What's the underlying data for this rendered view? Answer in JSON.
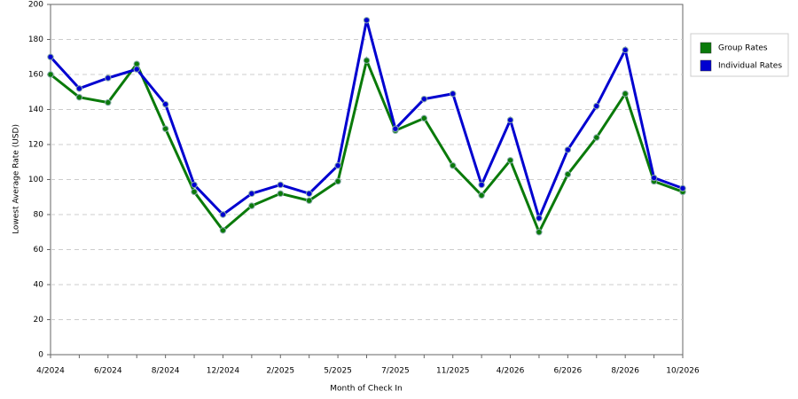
{
  "chart_data": {
    "type": "line",
    "x_label": "Month of Check In",
    "y_label": "Lowest Average Rate (USD)",
    "categories": [
      "4/2024",
      null,
      "6/2024",
      null,
      "8/2024",
      null,
      "12/2024",
      null,
      "2/2025",
      null,
      "5/2025",
      null,
      "7/2025",
      null,
      "11/2025",
      null,
      "4/2026",
      null,
      "6/2026",
      null,
      "8/2026",
      null,
      "10/2026"
    ],
    "series": [
      {
        "name": "Group Rates",
        "color": "#0a7a0a",
        "values": [
          160,
          147,
          144,
          166,
          129,
          93,
          71,
          85,
          92,
          88,
          99,
          168,
          128,
          135,
          108,
          91,
          111,
          70,
          103,
          124,
          149,
          99,
          93
        ]
      },
      {
        "name": "Individual Rates",
        "color": "#0000d0",
        "values": [
          170,
          152,
          158,
          163,
          143,
          97,
          80,
          92,
          97,
          92,
          108,
          191,
          129,
          146,
          149,
          97,
          134,
          78,
          117,
          142,
          174,
          101,
          95
        ]
      }
    ],
    "ylim": [
      0,
      200
    ],
    "yticks": [
      0,
      20,
      40,
      60,
      80,
      100,
      120,
      140,
      160,
      180,
      200
    ],
    "grid": true,
    "legend": "right"
  }
}
